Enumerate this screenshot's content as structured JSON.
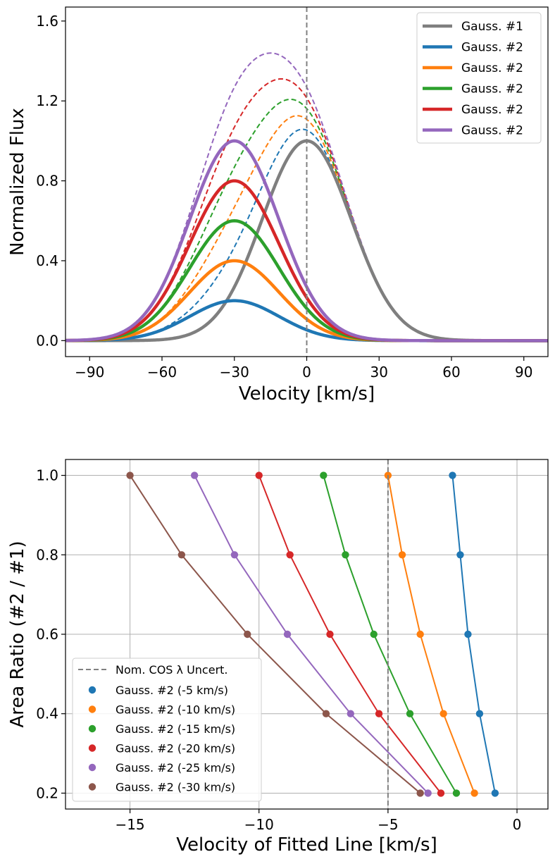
{
  "chart_data": [
    {
      "type": "line",
      "xlabel": "Velocity [km/s]",
      "ylabel": "Normalized Flux",
      "xlim": [
        -100,
        100
      ],
      "ylim": [
        -0.08,
        1.67
      ],
      "xticks": [
        -90,
        -60,
        -30,
        0,
        30,
        60,
        90
      ],
      "xtick_labels": [
        "−90",
        "−60",
        "−30",
        "0",
        "30",
        "60",
        "90"
      ],
      "yticks": [
        0.0,
        0.4,
        0.8,
        1.2,
        1.6
      ],
      "ytick_labels": [
        "0.0",
        "0.4",
        "0.8",
        "1.2",
        "1.6"
      ],
      "grid": false,
      "legend_position": "top-right",
      "vline": 0,
      "gauss1": {
        "name": "Gauss. #1",
        "center": 0,
        "amplitude": 1.0,
        "sigma": 18.5,
        "color": "#7f7f7f"
      },
      "series": [
        {
          "name": "Gauss. #2",
          "center": -30,
          "amplitude": 0.2,
          "sigma": 18.5,
          "color": "#1f77b4"
        },
        {
          "name": "Gauss. #2",
          "center": -30,
          "amplitude": 0.4,
          "sigma": 18.5,
          "color": "#ff7f0e"
        },
        {
          "name": "Gauss. #2",
          "center": -30,
          "amplitude": 0.6,
          "sigma": 18.5,
          "color": "#2ca02c"
        },
        {
          "name": "Gauss. #2",
          "center": -30,
          "amplitude": 0.8,
          "sigma": 18.5,
          "color": "#d62728"
        },
        {
          "name": "Gauss. #2",
          "center": -30,
          "amplitude": 1.0,
          "sigma": 18.5,
          "color": "#9467bd"
        }
      ]
    },
    {
      "type": "line",
      "xlabel": "Velocity of Fitted Line [km/s]",
      "ylabel": "Area Ratio (#2 / #1)",
      "xlim": [
        -17.5,
        1.2
      ],
      "ylim": [
        0.16,
        1.04
      ],
      "xticks": [
        -15,
        -10,
        -5,
        0
      ],
      "xtick_labels": [
        "−15",
        "−10",
        "−5",
        "0"
      ],
      "yticks": [
        0.2,
        0.4,
        0.6,
        0.8,
        1.0
      ],
      "ytick_labels": [
        "0.2",
        "0.4",
        "0.6",
        "0.8",
        "1.0"
      ],
      "grid": true,
      "legend_position": "bottom-left",
      "vline": -5,
      "vline_label": "Nom. COS λ Uncert.",
      "y": [
        0.2,
        0.4,
        0.6,
        0.8,
        1.0
      ],
      "series": [
        {
          "name": "Gauss. #2 (-5 km/s)",
          "color": "#1f77b4",
          "x": [
            -0.85,
            -1.45,
            -1.9,
            -2.2,
            -2.5
          ]
        },
        {
          "name": "Gauss. #2 (-10 km/s)",
          "color": "#ff7f0e",
          "x": [
            -1.65,
            -2.85,
            -3.75,
            -4.45,
            -5.0
          ]
        },
        {
          "name": "Gauss. #2 (-15 km/s)",
          "color": "#2ca02c",
          "x": [
            -2.35,
            -4.15,
            -5.55,
            -6.65,
            -7.5
          ]
        },
        {
          "name": "Gauss. #2 (-20 km/s)",
          "color": "#d62728",
          "x": [
            -2.95,
            -5.35,
            -7.25,
            -8.8,
            -10.0
          ]
        },
        {
          "name": "Gauss. #2 (-25 km/s)",
          "color": "#9467bd",
          "x": [
            -3.45,
            -6.45,
            -8.9,
            -10.95,
            -12.5
          ]
        },
        {
          "name": "Gauss. #2 (-30 km/s)",
          "color": "#8c564b",
          "x": [
            -3.75,
            -7.4,
            -10.45,
            -13.0,
            -15.0
          ]
        }
      ]
    }
  ]
}
